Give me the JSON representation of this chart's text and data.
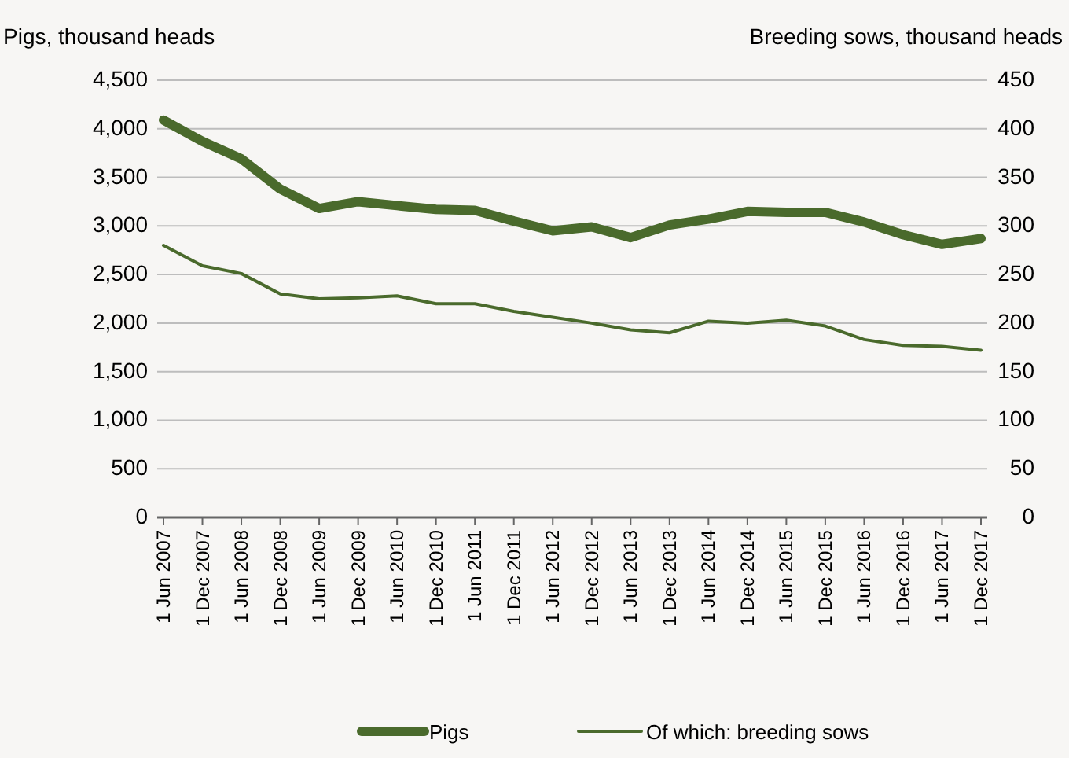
{
  "chart_data": {
    "type": "line",
    "ylabel": "Pigs, thousand heads",
    "y2label": "Breeding sows, thousand heads",
    "categories": [
      "1 Jun 2007",
      "1 Dec 2007",
      "1 Jun 2008",
      "1 Dec 2008",
      "1 Jun 2009",
      "1 Dec 2009",
      "1 Jun 2010",
      "1 Dec 2010",
      "1 Jun 2011",
      "1 Dec 2011",
      "1 Jun 2012",
      "1 Dec 2012",
      "1 Jun 2013",
      "1 Dec 2013",
      "1 Jun 2014",
      "1 Dec 2014",
      "1 Jun 2015",
      "1 Dec 2015",
      "1 Jun 2016",
      "1 Dec 2016",
      "1 Jun 2017",
      "1 Dec 2017"
    ],
    "series": [
      {
        "name": "Pigs",
        "color": "#4a6a2c",
        "values": [
          4090,
          3870,
          3690,
          3380,
          3180,
          3250,
          3210,
          3170,
          3160,
          3050,
          2950,
          2990,
          2880,
          3010,
          3070,
          3150,
          3140,
          3140,
          3040,
          2910,
          2810,
          2870
        ]
      },
      {
        "name": "Of which: breeding sows",
        "color": "#4a6a2c",
        "axis": "y2",
        "values": [
          280,
          259,
          251,
          230,
          225,
          226,
          228,
          220,
          220,
          212,
          206,
          200,
          193,
          190,
          202,
          200,
          203,
          197,
          183,
          177,
          176,
          172
        ]
      }
    ],
    "ylim": [
      0,
      4500
    ],
    "yticks": [
      {
        "value": 0,
        "label": "0"
      },
      {
        "value": 500,
        "label": "500"
      },
      {
        "value": 1000,
        "label": "1,000"
      },
      {
        "value": 1500,
        "label": "1,500"
      },
      {
        "value": 2000,
        "label": "2,000"
      },
      {
        "value": 2500,
        "label": "2,500"
      },
      {
        "value": 3000,
        "label": "3,000"
      },
      {
        "value": 3500,
        "label": "3,500"
      },
      {
        "value": 4000,
        "label": "4,000"
      },
      {
        "value": 4500,
        "label": "4,500"
      }
    ],
    "y2lim": [
      0,
      450
    ],
    "y2ticks": [
      0,
      50,
      100,
      150,
      200,
      250,
      300,
      350,
      400,
      450
    ],
    "grid": "y",
    "legend": "bottom",
    "line_style": "solid",
    "marker": "none"
  }
}
